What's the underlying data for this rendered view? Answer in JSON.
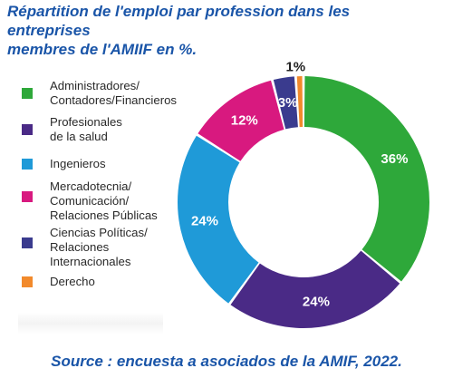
{
  "title_lines": [
    "Répartition de l'emploi par profession dans les entreprises",
    "membres de l'AMIIF en %."
  ],
  "source": "Source : encuesta a asociados de la AMIF, 2022.",
  "chart_data": {
    "type": "pie",
    "title": "Répartition de l'emploi par profession dans les entreprises membres de l'AMIIF en %.",
    "unit": "%",
    "legend_position": "left",
    "categories": [
      "Administradores/ Contadores/Financieros",
      "Profesionales de la salud",
      "Ingenieros",
      "Mercadotecnia/ Comunicación/ Relaciones Públicas",
      "Ciencias Políticas/ Relaciones Internacionales",
      "Derecho"
    ],
    "values": [
      36,
      24,
      24,
      12,
      3,
      1
    ],
    "labels": [
      "36%",
      "24%",
      "24%",
      "12%",
      "3%",
      "1%"
    ],
    "colors": [
      "#2ea83a",
      "#4a2a86",
      "#1f9ad8",
      "#d8197f",
      "#3a3b8e",
      "#f28a2c"
    ],
    "label_colors": [
      "#ffffff",
      "#ffffff",
      "#ffffff",
      "#ffffff",
      "#ffffff",
      "#222222"
    ]
  },
  "legend": [
    {
      "lines": [
        "Administradores/",
        "Contadores/Financieros"
      ],
      "color": "#2ea83a"
    },
    {
      "lines": [
        "Profesionales",
        "de la salud"
      ],
      "color": "#4a2a86"
    },
    {
      "lines": [
        "Ingenieros"
      ],
      "color": "#1f9ad8"
    },
    {
      "lines": [
        "Mercadotecnia/",
        "Comunicación/",
        "Relaciones Públicas"
      ],
      "color": "#d8197f"
    },
    {
      "lines": [
        "Ciencias Políticas/",
        "Relaciones",
        "Internacionales"
      ],
      "color": "#3a3b8e"
    },
    {
      "lines": [
        "Derecho"
      ],
      "color": "#f28a2c"
    }
  ]
}
